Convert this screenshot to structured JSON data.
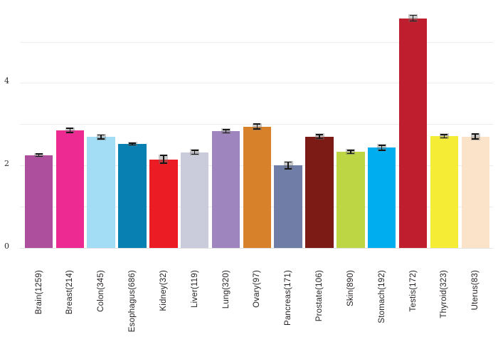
{
  "chart_data": {
    "type": "bar",
    "title": "",
    "xlabel": "",
    "ylabel": "",
    "categories": [
      "Brain(1259)",
      "Breast(214)",
      "Colon(345)",
      "Esophagus(686)",
      "Kidney(32)",
      "Liver(119)",
      "Lung(320)",
      "Ovary(97)",
      "Pancreas(171)",
      "Prostate(106)",
      "Skin(890)",
      "Stomach(192)",
      "Testis(172)",
      "Thyroid(323)",
      "Uterus(83)"
    ],
    "values": [
      2.25,
      2.85,
      2.69,
      2.52,
      2.15,
      2.32,
      2.83,
      2.94,
      2.0,
      2.7,
      2.33,
      2.43,
      5.57,
      2.71,
      2.7
    ],
    "errors": [
      0.03,
      0.05,
      0.05,
      0.02,
      0.09,
      0.05,
      0.04,
      0.06,
      0.08,
      0.05,
      0.04,
      0.06,
      0.07,
      0.04,
      0.06
    ],
    "bar_colors": [
      "#ae4f9d",
      "#ed2a91",
      "#a2dcf5",
      "#0880b2",
      "#ec1c24",
      "#cacbdb",
      "#9e85be",
      "#d8812b",
      "#6f7da7",
      "#7c1a16",
      "#bdd643",
      "#00adee",
      "#bf1e2e",
      "#f5ec35",
      "#fae3c9"
    ],
    "ytick_labels": [
      "0",
      "2",
      "4"
    ],
    "yticks": [
      0,
      2,
      4
    ],
    "gridline_values": [
      1,
      2,
      3,
      4,
      5
    ],
    "ylim": [
      0,
      6
    ],
    "grid": "horizontal",
    "legend_position": "none",
    "error_bars": true,
    "colors": {
      "background": "#ffffff",
      "gridline": "#ececec",
      "axis_line": "#e2e2e2",
      "error_bar": "#161616",
      "error_band": "rgba(110,110,110,0.38)",
      "tick_label": "#2b2b2b",
      "category_label": "#231f20"
    }
  }
}
